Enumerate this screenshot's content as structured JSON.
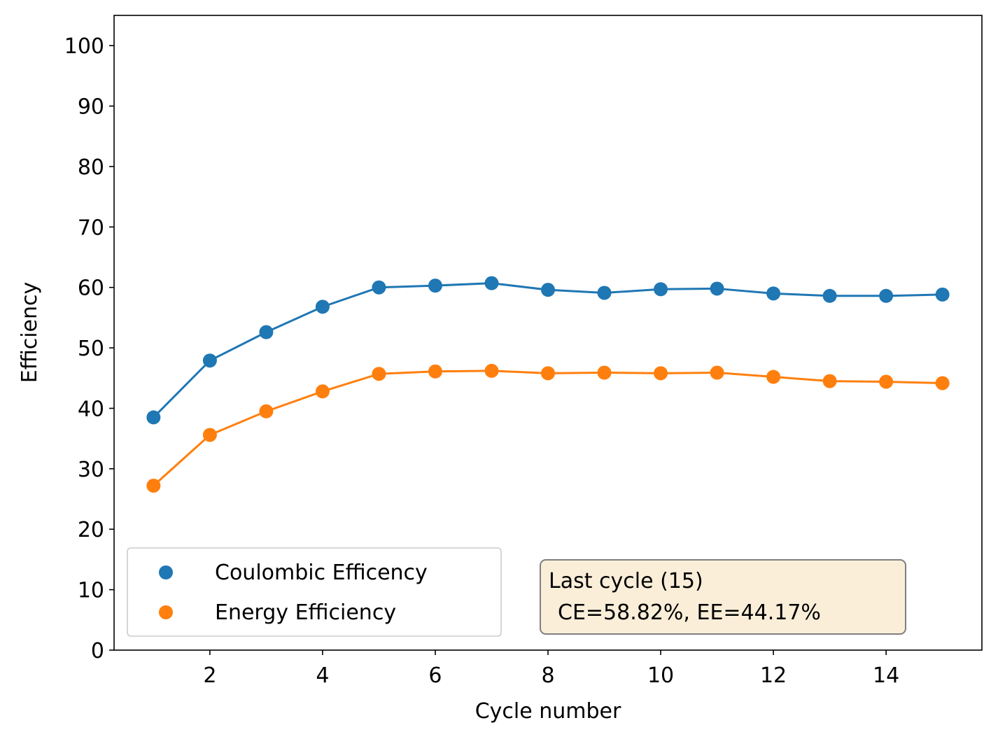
{
  "chart_data": {
    "type": "line",
    "x_label": "Cycle number",
    "y_label": "Efficiency",
    "x": [
      1,
      2,
      3,
      4,
      5,
      6,
      7,
      8,
      9,
      10,
      11,
      12,
      13,
      14,
      15
    ],
    "series": [
      {
        "name": "Coulombic Efficency",
        "color": "#1f77b4",
        "values": [
          38.5,
          47.9,
          52.6,
          56.8,
          60.0,
          60.3,
          60.7,
          59.6,
          59.1,
          59.7,
          59.8,
          59.0,
          58.6,
          58.6,
          58.82
        ]
      },
      {
        "name": "Energy Efficiency",
        "color": "#ff7f0e",
        "values": [
          27.2,
          35.6,
          39.5,
          42.8,
          45.7,
          46.1,
          46.2,
          45.8,
          45.9,
          45.8,
          45.9,
          45.2,
          44.5,
          44.4,
          44.17
        ]
      }
    ],
    "xlim": [
      0.3,
      15.7
    ],
    "xticks": [
      2,
      4,
      6,
      8,
      10,
      12,
      14
    ],
    "ylim": [
      0,
      105
    ],
    "yticks": [
      0,
      10,
      20,
      30,
      40,
      50,
      60,
      70,
      80,
      90,
      100
    ],
    "grid": false,
    "legend": "lower left",
    "annotation": [
      "Last cycle (15)",
      "CE=58.82%, EE=44.17%"
    ]
  }
}
